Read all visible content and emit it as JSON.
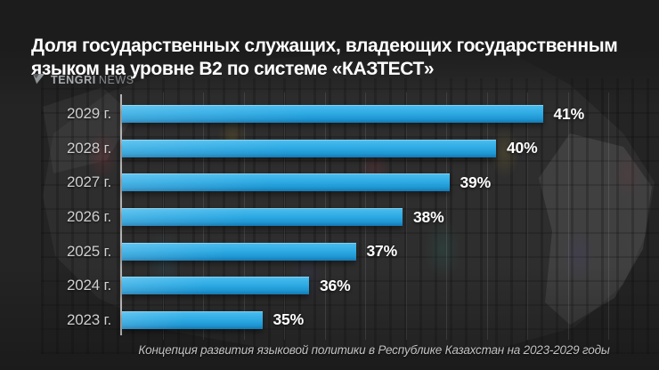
{
  "header": {
    "title": "Доля государственных служащих, владеющих государственным языком на уровне В2 по системе «КАЗТЕСТ»",
    "logo": {
      "brand": "TENGRI",
      "suffix": "NEWS"
    }
  },
  "chart_data": {
    "type": "bar",
    "orientation": "horizontal",
    "title": "Доля государственных служащих, владеющих государственным языком на уровне В2 по системе «КАЗТЕСТ»",
    "categories": [
      "2029 г.",
      "2028 г.",
      "2027 г.",
      "2026 г.",
      "2025 г.",
      "2024 г.",
      "2023 г."
    ],
    "values": [
      41,
      40,
      39,
      38,
      37,
      36,
      35
    ],
    "unit": "%",
    "xlabel": "",
    "ylabel": "",
    "xlim": [
      32,
      42.4
    ],
    "grid": "faint-vertical",
    "legend": "none",
    "bar_color": "#2aa7e1",
    "value_label_color": "#ffffff",
    "category_label_color": "#cfcfcf"
  },
  "footer": {
    "source": "Концепция развития языковой политики в Республике Казахстан на 2023-2029 годы"
  },
  "colors": {
    "background": "#262626",
    "top_band": "#1c1c1c",
    "bar_top": "#4cbdee",
    "bar_bottom": "#1478b2",
    "axis": "#b3b3b3",
    "gridline": "rgba(255,255,255,0.10)",
    "title_text": "#ffffff",
    "footer_text": "#c2c2c2",
    "logo_text": "#a8adb0"
  }
}
